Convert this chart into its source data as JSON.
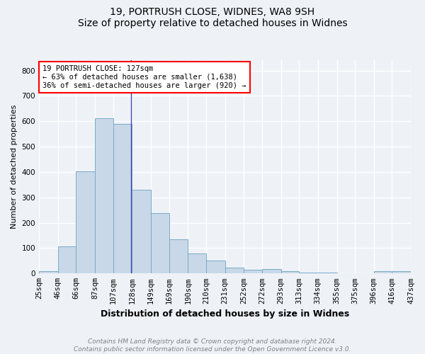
{
  "title1": "19, PORTRUSH CLOSE, WIDNES, WA8 9SH",
  "title2": "Size of property relative to detached houses in Widnes",
  "xlabel": "Distribution of detached houses by size in Widnes",
  "ylabel": "Number of detached properties",
  "bin_edges": [
    25,
    46,
    66,
    87,
    107,
    128,
    149,
    169,
    190,
    210,
    231,
    252,
    272,
    293,
    313,
    334,
    355,
    375,
    396,
    416,
    437
  ],
  "counts": [
    8,
    107,
    403,
    613,
    590,
    330,
    237,
    135,
    80,
    52,
    23,
    15,
    18,
    8,
    5,
    3,
    0,
    0,
    8,
    10
  ],
  "bar_color": "#c8d8e8",
  "bar_edge_color": "#7aaac8",
  "property_size": 127,
  "property_line_color": "#4444aa",
  "annotation_line1": "19 PORTRUSH CLOSE: 127sqm",
  "annotation_line2": "← 63% of detached houses are smaller (1,638)",
  "annotation_line3": "36% of semi-detached houses are larger (920) →",
  "annotation_box_color": "white",
  "annotation_box_edge_color": "red",
  "ylim": [
    0,
    840
  ],
  "yticks": [
    0,
    100,
    200,
    300,
    400,
    500,
    600,
    700,
    800
  ],
  "footnote_line1": "Contains HM Land Registry data © Crown copyright and database right 2024.",
  "footnote_line2": "Contains public sector information licensed under the Open Government Licence v3.0.",
  "bg_color": "#eef2f7",
  "grid_color": "white",
  "title1_fontsize": 10,
  "title2_fontsize": 9,
  "xlabel_fontsize": 9,
  "ylabel_fontsize": 8,
  "tick_fontsize": 7.5,
  "annot_fontsize": 7.5,
  "footnote_fontsize": 6.5
}
